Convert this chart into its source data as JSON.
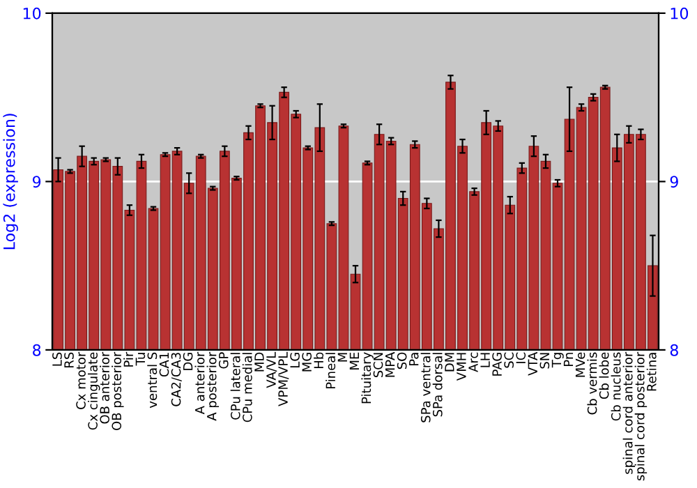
{
  "chart_data": {
    "type": "bar",
    "ylabel": "Log2 (expression)",
    "categories": [
      "LS",
      "RS",
      "Cx motor",
      "Cx cingulate",
      "OB anterior",
      "OB posterior",
      "Pir",
      "Tu",
      "ventral S",
      "CA1",
      "CA2/CA3",
      "DG",
      "A anterior",
      "A posterior",
      "GP",
      "CPu lateral",
      "CPu medial",
      "MD",
      "VA/VL",
      "VPM/VPL",
      "LG",
      "MG",
      "Hb",
      "Pineal",
      "M",
      "ME",
      "Pituitary",
      "SCN",
      "MPA",
      "SO",
      "Pa",
      "SPa ventral",
      "SPa dorsal",
      "DM",
      "VMH",
      "Arc",
      "LH",
      "PAG",
      "SC",
      "IC",
      "VTA",
      "SN",
      "Tg",
      "Pn",
      "MVe",
      "Cb vermis",
      "Cb lobe",
      "Cb nucleus",
      "spinal cord anterior",
      "spinal cord posterior",
      "Retina"
    ],
    "values": [
      9.07,
      9.06,
      9.15,
      9.12,
      9.13,
      9.09,
      8.83,
      9.12,
      8.84,
      9.16,
      9.18,
      8.99,
      9.15,
      8.96,
      9.18,
      9.02,
      9.29,
      9.45,
      9.35,
      9.53,
      9.4,
      9.2,
      9.32,
      8.75,
      9.33,
      8.45,
      9.11,
      9.28,
      9.24,
      8.9,
      9.22,
      8.87,
      8.72,
      9.59,
      9.21,
      8.94,
      9.35,
      9.33,
      8.86,
      9.08,
      9.21,
      9.12,
      8.99,
      9.37,
      9.44,
      9.5,
      9.56,
      9.2,
      9.28,
      9.28,
      8.5
    ],
    "errors": [
      0.07,
      0.01,
      0.06,
      0.02,
      0.01,
      0.05,
      0.03,
      0.04,
      0.01,
      0.01,
      0.02,
      0.06,
      0.01,
      0.01,
      0.03,
      0.01,
      0.04,
      0.01,
      0.1,
      0.03,
      0.02,
      0.01,
      0.14,
      0.01,
      0.01,
      0.05,
      0.01,
      0.06,
      0.02,
      0.04,
      0.02,
      0.03,
      0.05,
      0.04,
      0.04,
      0.02,
      0.07,
      0.03,
      0.05,
      0.03,
      0.06,
      0.04,
      0.02,
      0.19,
      0.02,
      0.02,
      0.01,
      0.08,
      0.05,
      0.03,
      0.18
    ],
    "color": "#b83232",
    "ylim": [
      8,
      10
    ],
    "yticks": [
      8,
      9,
      10
    ],
    "y2lim": [
      8,
      10
    ],
    "y2ticks": [
      8,
      9,
      10
    ],
    "ref_lines": [
      {
        "axis": "y",
        "value": 9,
        "color": "#ffffff"
      }
    ]
  }
}
